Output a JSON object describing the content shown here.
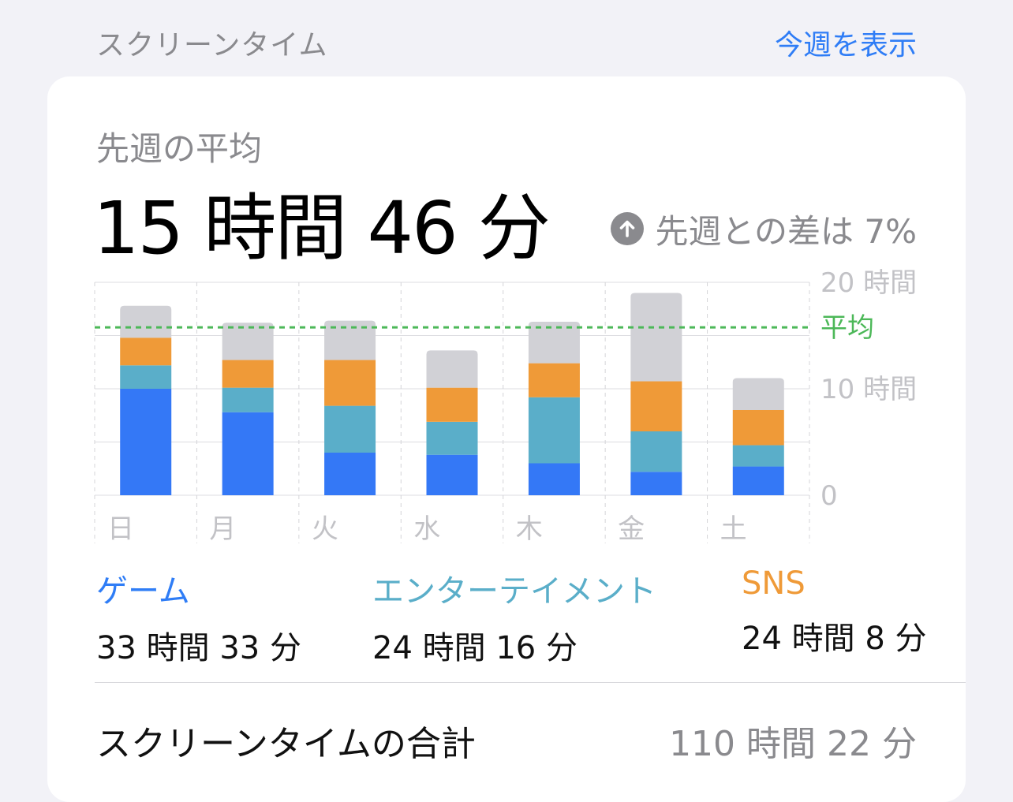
{
  "header": {
    "title": "スクリーンタイム",
    "link_label": "今週を表示"
  },
  "summary": {
    "label": "先週の平均",
    "value": "15 時間 46 分",
    "diff_text": "先週との差は 7%",
    "diff_icon": "arrow-up-circle-icon"
  },
  "chart_data": {
    "type": "bar",
    "stacked": true,
    "categories": [
      "日",
      "月",
      "火",
      "水",
      "木",
      "金",
      "土"
    ],
    "series": [
      {
        "name": "ゲーム",
        "color": "#3478f6",
        "values": [
          10.0,
          7.8,
          4.0,
          3.8,
          3.0,
          2.2,
          2.7
        ]
      },
      {
        "name": "エンターテイメント",
        "color": "#5aaec9",
        "values": [
          2.2,
          2.3,
          4.4,
          3.1,
          6.2,
          3.8,
          2.0
        ]
      },
      {
        "name": "SNS",
        "color": "#ef9a38",
        "values": [
          2.6,
          2.6,
          4.3,
          3.2,
          3.2,
          4.7,
          3.3
        ]
      },
      {
        "name": "",
        "color": "#d1d1d6",
        "values": [
          3.0,
          3.5,
          3.7,
          3.5,
          3.9,
          8.3,
          3.0
        ]
      }
    ],
    "average": 15.77,
    "average_label": "平均",
    "average_color": "#4cb858",
    "ylim": [
      0,
      20
    ],
    "y_ticks": [
      {
        "value": 20,
        "label": "20 時間"
      },
      {
        "value": 10,
        "label": "10 時間"
      },
      {
        "value": 0,
        "label": "0"
      }
    ],
    "grid": true
  },
  "legend": [
    {
      "name": "ゲーム",
      "time": "33 時間 33 分",
      "color": "#2f7df6"
    },
    {
      "name": "エンターテイメント",
      "time": "24 時間 16 分",
      "color": "#5aaec9"
    },
    {
      "name": "SNS",
      "time": "24 時間 8 分",
      "color": "#ef9a38"
    }
  ],
  "total": {
    "label": "スクリーンタイムの合計",
    "value": "110 時間 22 分"
  }
}
